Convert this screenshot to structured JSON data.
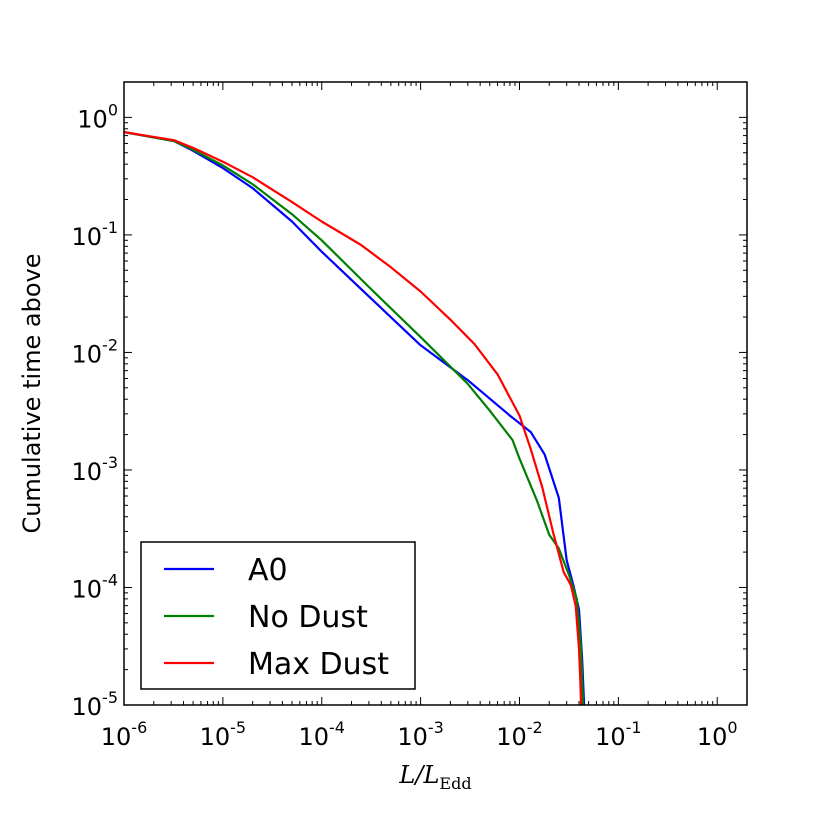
{
  "chart_data": {
    "type": "line",
    "xscale": "log",
    "yscale": "log",
    "xlim": [
      1e-06,
      2
    ],
    "ylim": [
      1e-05,
      2
    ],
    "xlabel": "L/L",
    "xlabel_sub": "Edd",
    "ylabel": "Cumulative time above",
    "xticks": [
      {
        "value": 1e-06,
        "base": "10",
        "exp": "-6"
      },
      {
        "value": 1e-05,
        "base": "10",
        "exp": "-5"
      },
      {
        "value": 0.0001,
        "base": "10",
        "exp": "-4"
      },
      {
        "value": 0.001,
        "base": "10",
        "exp": "-3"
      },
      {
        "value": 0.01,
        "base": "10",
        "exp": "-2"
      },
      {
        "value": 0.1,
        "base": "10",
        "exp": "-1"
      },
      {
        "value": 1,
        "base": "10",
        "exp": "0"
      }
    ],
    "yticks": [
      {
        "value": 1e-05,
        "base": "10",
        "exp": "-5"
      },
      {
        "value": 0.0001,
        "base": "10",
        "exp": "-4"
      },
      {
        "value": 0.001,
        "base": "10",
        "exp": "-3"
      },
      {
        "value": 0.01,
        "base": "10",
        "exp": "-2"
      },
      {
        "value": 0.1,
        "base": "10",
        "exp": "-1"
      },
      {
        "value": 1,
        "base": "10",
        "exp": "0"
      }
    ],
    "legend_position": "lower-left",
    "series": [
      {
        "name": "A0",
        "color": "#0000ff",
        "x": [
          1e-06,
          3.2e-06,
          5e-06,
          1e-05,
          2e-05,
          5e-05,
          0.0001,
          0.0003,
          0.001,
          0.003,
          0.008,
          0.013,
          0.018,
          0.025,
          0.03,
          0.035,
          0.04,
          0.043,
          0.045
        ],
        "y": [
          0.75,
          0.63,
          0.52,
          0.37,
          0.25,
          0.13,
          0.072,
          0.03,
          0.0115,
          0.0058,
          0.0029,
          0.0021,
          0.00135,
          0.00058,
          0.00017,
          0.000105,
          6.5e-05,
          2.5e-05,
          1e-05
        ]
      },
      {
        "name": "No Dust",
        "color": "#008000",
        "x": [
          1e-06,
          3.2e-06,
          5e-06,
          1e-05,
          2e-05,
          5e-05,
          0.0001,
          0.0003,
          0.001,
          0.003,
          0.005,
          0.0085,
          0.01,
          0.015,
          0.02,
          0.025,
          0.032,
          0.038,
          0.042,
          0.044
        ],
        "y": [
          0.75,
          0.63,
          0.53,
          0.39,
          0.27,
          0.15,
          0.09,
          0.036,
          0.0135,
          0.0054,
          0.0032,
          0.0018,
          0.00125,
          0.00055,
          0.00028,
          0.000215,
          0.000125,
          8e-05,
          3e-05,
          1e-05
        ]
      },
      {
        "name": "Max Dust",
        "color": "#ff0000",
        "x": [
          1e-06,
          3.2e-06,
          5e-06,
          1e-05,
          2e-05,
          5e-05,
          0.0001,
          0.00025,
          0.0005,
          0.001,
          0.002,
          0.0035,
          0.006,
          0.01,
          0.013,
          0.017,
          0.022,
          0.028,
          0.033,
          0.037,
          0.04,
          0.041,
          0.042
        ],
        "y": [
          0.75,
          0.64,
          0.55,
          0.42,
          0.31,
          0.19,
          0.13,
          0.082,
          0.053,
          0.033,
          0.019,
          0.0118,
          0.0065,
          0.0029,
          0.0015,
          0.00071,
          0.00029,
          0.000135,
          0.000105,
          7e-05,
          3e-05,
          1.8e-05,
          1e-05
        ]
      }
    ]
  }
}
